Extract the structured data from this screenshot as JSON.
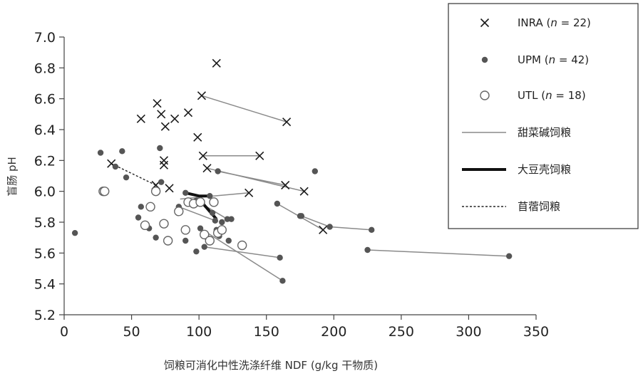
{
  "chart_data": {
    "type": "scatter",
    "title": "",
    "xlabel": "饲粮可消化中性洗涤纤维 NDF (g/kg 干物质)",
    "ylabel": "盲肠 pH",
    "xlim": [
      0,
      350
    ],
    "ylim": [
      5.2,
      7.0
    ],
    "x_ticks": [
      0,
      50,
      100,
      150,
      200,
      250,
      300,
      350
    ],
    "y_ticks": [
      5.2,
      5.4,
      5.6,
      5.8,
      6.0,
      6.2,
      6.4,
      6.6,
      6.8,
      7.0
    ],
    "grid": false,
    "legend_position": "top-right",
    "series": [
      {
        "name": "INRA",
        "n_label": "22",
        "marker": "x",
        "color": "#222222",
        "points": [
          [
            35,
            6.18
          ],
          [
            57,
            6.47
          ],
          [
            68,
            6.04
          ],
          [
            69,
            6.57
          ],
          [
            72,
            6.5
          ],
          [
            74,
            6.2
          ],
          [
            74,
            6.17
          ],
          [
            75,
            6.42
          ],
          [
            78,
            6.02
          ],
          [
            82,
            6.47
          ],
          [
            92,
            6.51
          ],
          [
            99,
            6.35
          ],
          [
            102,
            6.62
          ],
          [
            103,
            6.23
          ],
          [
            106,
            6.15
          ],
          [
            113,
            6.83
          ],
          [
            137,
            5.99
          ],
          [
            145,
            6.23
          ],
          [
            164,
            6.04
          ],
          [
            165,
            6.45
          ],
          [
            178,
            6.0
          ],
          [
            192,
            5.75
          ]
        ]
      },
      {
        "name": "UPM",
        "n_label": "42",
        "marker": "dot",
        "color": "#555555",
        "points": [
          [
            8,
            5.73
          ],
          [
            27,
            6.25
          ],
          [
            38,
            6.16
          ],
          [
            43,
            6.26
          ],
          [
            46,
            6.09
          ],
          [
            55,
            5.83
          ],
          [
            57,
            5.9
          ],
          [
            60,
            5.79
          ],
          [
            63,
            5.76
          ],
          [
            68,
            5.7
          ],
          [
            71,
            6.28
          ],
          [
            72,
            6.06
          ],
          [
            85,
            5.9
          ],
          [
            90,
            5.99
          ],
          [
            90,
            5.68
          ],
          [
            98,
            5.61
          ],
          [
            98,
            5.94
          ],
          [
            100,
            5.92
          ],
          [
            101,
            5.76
          ],
          [
            104,
            5.64
          ],
          [
            106,
            5.7
          ],
          [
            108,
            5.97
          ],
          [
            109,
            5.68
          ],
          [
            110,
            5.86
          ],
          [
            112,
            5.81
          ],
          [
            113,
            5.75
          ],
          [
            114,
            6.13
          ],
          [
            115,
            5.71
          ],
          [
            117,
            5.8
          ],
          [
            121,
            5.82
          ],
          [
            122,
            5.68
          ],
          [
            124,
            5.82
          ],
          [
            158,
            5.92
          ],
          [
            160,
            5.57
          ],
          [
            162,
            5.42
          ],
          [
            175,
            5.84
          ],
          [
            176,
            5.84
          ],
          [
            186,
            6.13
          ],
          [
            197,
            5.77
          ],
          [
            225,
            5.62
          ],
          [
            228,
            5.75
          ],
          [
            330,
            5.58
          ]
        ]
      },
      {
        "name": "UTL",
        "n_label": "18",
        "marker": "circle",
        "color": "#555555",
        "points": [
          [
            29,
            6.0
          ],
          [
            30,
            6.0
          ],
          [
            60,
            5.78
          ],
          [
            64,
            5.9
          ],
          [
            68,
            6.0
          ],
          [
            74,
            5.79
          ],
          [
            77,
            5.68
          ],
          [
            85,
            5.87
          ],
          [
            90,
            5.75
          ],
          [
            92,
            5.93
          ],
          [
            96,
            5.92
          ],
          [
            101,
            5.93
          ],
          [
            104,
            5.72
          ],
          [
            108,
            5.68
          ],
          [
            111,
            5.93
          ],
          [
            114,
            5.73
          ],
          [
            117,
            5.75
          ],
          [
            132,
            5.65
          ]
        ]
      }
    ],
    "connections": {
      "sugar_beet": [
        [
          [
            102,
            6.62
          ],
          [
            165,
            6.45
          ]
        ],
        [
          [
            103,
            6.23
          ],
          [
            145,
            6.23
          ]
        ],
        [
          [
            106,
            6.15
          ],
          [
            178,
            6.0
          ]
        ],
        [
          [
            114,
            6.13
          ],
          [
            164,
            6.04
          ]
        ],
        [
          [
            158,
            5.92
          ],
          [
            192,
            5.75
          ]
        ],
        [
          [
            176,
            5.84
          ],
          [
            197,
            5.77
          ],
          [
            228,
            5.75
          ]
        ],
        [
          [
            225,
            5.62
          ],
          [
            330,
            5.58
          ]
        ],
        [
          [
            104,
            5.64
          ],
          [
            160,
            5.57
          ]
        ],
        [
          [
            85,
            5.9
          ],
          [
            112,
            5.81
          ]
        ],
        [
          [
            98,
            5.94
          ],
          [
            121,
            5.82
          ]
        ],
        [
          [
            101,
            5.76
          ],
          [
            162,
            5.42
          ]
        ],
        [
          [
            86,
            5.95
          ],
          [
            137,
            5.99
          ]
        ]
      ],
      "soybean_hulls": [
        [
          [
            90,
            5.99
          ],
          [
            100,
            5.97
          ],
          [
            108,
            5.97
          ]
        ],
        [
          [
            100,
            5.95
          ],
          [
            113,
            5.82
          ]
        ]
      ],
      "alfalfa": [
        [
          [
            35,
            6.18
          ],
          [
            68,
            6.04
          ]
        ]
      ]
    },
    "legend": [
      {
        "kind": "marker",
        "marker": "x",
        "name": "INRA",
        "n_prefix": "n",
        "n_value": "= 22"
      },
      {
        "kind": "marker",
        "marker": "dot",
        "name": "UPM",
        "n_prefix": "n",
        "n_value": "= 42"
      },
      {
        "kind": "marker",
        "marker": "circle",
        "name": "UTL",
        "n_prefix": "n",
        "n_value": "= 18"
      },
      {
        "kind": "line",
        "style": "thin",
        "name": "甜菜碱饲粮"
      },
      {
        "kind": "line",
        "style": "thick",
        "name": "大豆壳饲粮"
      },
      {
        "kind": "line",
        "style": "dashed",
        "name": "苜蓿饲粮"
      }
    ]
  }
}
